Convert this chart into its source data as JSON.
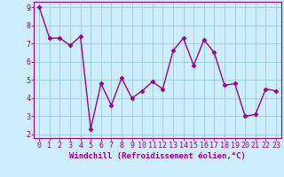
{
  "x": [
    0,
    1,
    2,
    3,
    4,
    5,
    6,
    7,
    8,
    9,
    10,
    11,
    12,
    13,
    14,
    15,
    16,
    17,
    18,
    19,
    20,
    21,
    22,
    23
  ],
  "y": [
    9.0,
    7.3,
    7.3,
    6.9,
    7.4,
    2.3,
    4.8,
    3.6,
    5.1,
    4.0,
    4.4,
    4.9,
    4.5,
    6.6,
    7.3,
    5.8,
    7.2,
    6.5,
    4.7,
    4.8,
    3.0,
    3.1,
    4.5,
    4.4
  ],
  "line_color": "#990099",
  "marker_color": "#990099",
  "bg_color": "#cceeff",
  "grid_color": "#99cccc",
  "xlabel": "Windchill (Refroidissement éolien,°C)",
  "xlabel_color": "#990099",
  "tick_color": "#990099",
  "spine_color": "#990099",
  "ylim": [
    1.8,
    9.3
  ],
  "xlim": [
    -0.5,
    23.5
  ],
  "yticks": [
    2,
    3,
    4,
    5,
    6,
    7,
    8,
    9
  ],
  "xticks": [
    0,
    1,
    2,
    3,
    4,
    5,
    6,
    7,
    8,
    9,
    10,
    11,
    12,
    13,
    14,
    15,
    16,
    17,
    18,
    19,
    20,
    21,
    22,
    23
  ],
  "xlabel_fontsize": 6.5,
  "tick_fontsize": 6.0,
  "line_width": 1.0,
  "marker_size": 2.5,
  "marker_style": "D"
}
